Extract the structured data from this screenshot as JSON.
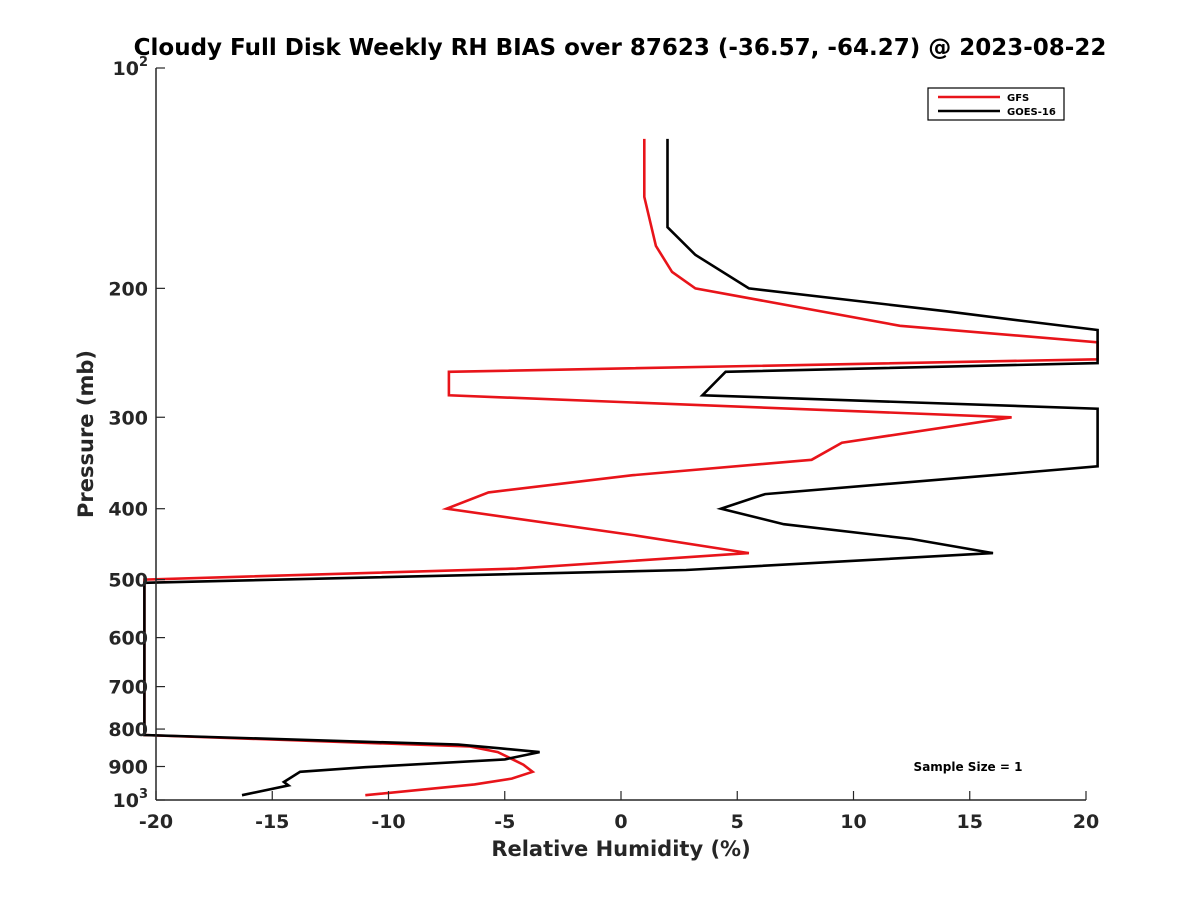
{
  "chart_data": {
    "type": "line",
    "title": "Cloudy Full Disk Weekly RH BIAS over 87623 (-36.57, -64.27) @ 2023-08-22",
    "xlabel": "Relative Humidity (%)",
    "ylabel": "Pressure (mb)",
    "xlim": [
      -20,
      20
    ],
    "ylim": [
      100,
      1000
    ],
    "yscale": "log",
    "y_reversed": true,
    "grid": false,
    "x_ticks": [
      {
        "value": -20,
        "label": "-20"
      },
      {
        "value": -15,
        "label": "-15"
      },
      {
        "value": -10,
        "label": "-10"
      },
      {
        "value": -5,
        "label": "-5"
      },
      {
        "value": 0,
        "label": "0"
      },
      {
        "value": 5,
        "label": "5"
      },
      {
        "value": 10,
        "label": "10"
      },
      {
        "value": 15,
        "label": "15"
      },
      {
        "value": 20,
        "label": "20"
      }
    ],
    "y_ticks": [
      {
        "value": 100,
        "base": "10",
        "exp": "2"
      },
      {
        "value": 200,
        "label": "200"
      },
      {
        "value": 300,
        "label": "300"
      },
      {
        "value": 400,
        "label": "400"
      },
      {
        "value": 500,
        "label": "500"
      },
      {
        "value": 600,
        "label": "600"
      },
      {
        "value": 700,
        "label": "700"
      },
      {
        "value": 800,
        "label": "800"
      },
      {
        "value": 900,
        "label": "900"
      },
      {
        "value": 1000,
        "base": "10",
        "exp": "3"
      }
    ],
    "legend_position": "top-right",
    "series": [
      {
        "name": "GFS",
        "color": "#e8141a",
        "points": [
          {
            "x": 1.0,
            "y": 125
          },
          {
            "x": 1.0,
            "y": 150
          },
          {
            "x": 1.5,
            "y": 175
          },
          {
            "x": 2.2,
            "y": 190
          },
          {
            "x": 3.2,
            "y": 200
          },
          {
            "x": 12.0,
            "y": 225
          },
          {
            "x": 20.5,
            "y": 237
          },
          {
            "x": 20.5,
            "y": 250
          },
          {
            "x": -7.4,
            "y": 260
          },
          {
            "x": -7.4,
            "y": 280
          },
          {
            "x": 16.8,
            "y": 300
          },
          {
            "x": 9.5,
            "y": 325
          },
          {
            "x": 8.2,
            "y": 343
          },
          {
            "x": 0.5,
            "y": 360
          },
          {
            "x": -5.7,
            "y": 380
          },
          {
            "x": -7.5,
            "y": 400
          },
          {
            "x": 0.6,
            "y": 435
          },
          {
            "x": 5.5,
            "y": 460
          },
          {
            "x": -4.5,
            "y": 483
          },
          {
            "x": -20.5,
            "y": 500
          },
          {
            "x": -20.5,
            "y": 815
          },
          {
            "x": -6.5,
            "y": 845
          },
          {
            "x": -5.3,
            "y": 860
          },
          {
            "x": -4.2,
            "y": 895
          },
          {
            "x": -3.8,
            "y": 915
          },
          {
            "x": -4.7,
            "y": 935
          },
          {
            "x": -6.3,
            "y": 952
          },
          {
            "x": -11.0,
            "y": 985
          }
        ]
      },
      {
        "name": "GOES-16",
        "color": "#000000",
        "points": [
          {
            "x": 2.0,
            "y": 125
          },
          {
            "x": 2.0,
            "y": 165
          },
          {
            "x": 3.2,
            "y": 180
          },
          {
            "x": 5.5,
            "y": 200
          },
          {
            "x": 14.0,
            "y": 215
          },
          {
            "x": 17.5,
            "y": 222
          },
          {
            "x": 20.5,
            "y": 228
          },
          {
            "x": 20.5,
            "y": 253
          },
          {
            "x": 4.5,
            "y": 260
          },
          {
            "x": 3.5,
            "y": 280
          },
          {
            "x": 20.5,
            "y": 292
          },
          {
            "x": 20.5,
            "y": 350
          },
          {
            "x": 16.0,
            "y": 360
          },
          {
            "x": 6.2,
            "y": 382
          },
          {
            "x": 4.3,
            "y": 400
          },
          {
            "x": 7.0,
            "y": 420
          },
          {
            "x": 12.5,
            "y": 440
          },
          {
            "x": 16.0,
            "y": 460
          },
          {
            "x": 2.8,
            "y": 485
          },
          {
            "x": -20.5,
            "y": 505
          },
          {
            "x": -20.5,
            "y": 815
          },
          {
            "x": -7.0,
            "y": 840
          },
          {
            "x": -5.2,
            "y": 850
          },
          {
            "x": -3.5,
            "y": 860
          },
          {
            "x": -5.0,
            "y": 880
          },
          {
            "x": -11.0,
            "y": 902
          },
          {
            "x": -13.8,
            "y": 915
          },
          {
            "x": -14.5,
            "y": 945
          },
          {
            "x": -14.3,
            "y": 955
          },
          {
            "x": -16.3,
            "y": 985
          }
        ]
      }
    ],
    "annotation": "Sample Size = 1"
  }
}
